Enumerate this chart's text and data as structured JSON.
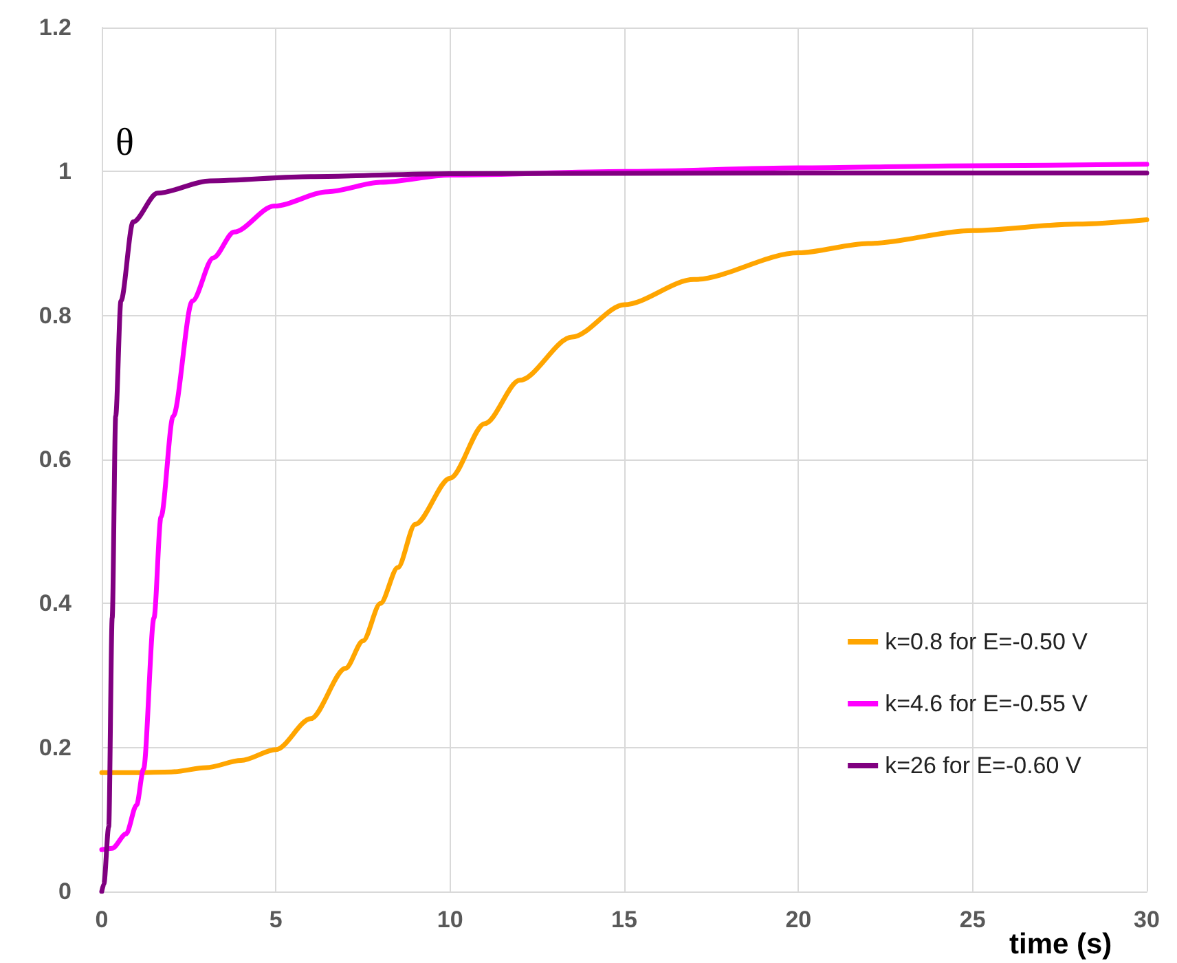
{
  "chart_data": {
    "type": "line",
    "xlabel": "time (s)",
    "ylabel": "θ",
    "xlim": [
      0,
      30
    ],
    "ylim": [
      0,
      1.2
    ],
    "xticks": [
      0,
      5,
      10,
      15,
      20,
      25,
      30
    ],
    "yticks": [
      0,
      0.2,
      0.4,
      0.6,
      0.8,
      1,
      1.2
    ],
    "grid": true,
    "legend": "bottom right",
    "marker": "none",
    "line_style": "solid",
    "series": [
      {
        "name": "k=0.8 for E=-0.50 V",
        "color": "#ffa500",
        "x": [
          0,
          1,
          2,
          3,
          4,
          5,
          6,
          7,
          7.5,
          8,
          8.5,
          9,
          10,
          11,
          12,
          13.5,
          15,
          17,
          20,
          22,
          25,
          28,
          30
        ],
        "values": [
          0.165,
          0.165,
          0.166,
          0.172,
          0.182,
          0.197,
          0.24,
          0.31,
          0.348,
          0.4,
          0.45,
          0.51,
          0.574,
          0.65,
          0.71,
          0.77,
          0.815,
          0.85,
          0.887,
          0.9,
          0.918,
          0.927,
          0.933
        ]
      },
      {
        "name": "k=4.6 for E=-0.55 V",
        "color": "#ff00ff",
        "x": [
          0,
          0.3,
          0.7,
          1,
          1.2,
          1.5,
          1.7,
          2.05,
          2.6,
          3.2,
          3.8,
          4.95,
          6.5,
          8,
          10,
          15,
          20,
          25,
          30
        ],
        "values": [
          0.058,
          0.06,
          0.08,
          0.12,
          0.17,
          0.38,
          0.52,
          0.66,
          0.82,
          0.88,
          0.916,
          0.952,
          0.972,
          0.985,
          0.995,
          1.0,
          1.005,
          1.008,
          1.01
        ]
      },
      {
        "name": "k=26 for E=-0.60 V",
        "color": "#800080",
        "x": [
          0,
          0.06,
          0.2,
          0.3,
          0.4,
          0.55,
          0.9,
          1.6,
          3.1,
          6,
          10,
          20,
          30
        ],
        "values": [
          0,
          0.01,
          0.09,
          0.38,
          0.66,
          0.82,
          0.93,
          0.97,
          0.987,
          0.993,
          0.997,
          0.998,
          0.998
        ]
      }
    ]
  }
}
